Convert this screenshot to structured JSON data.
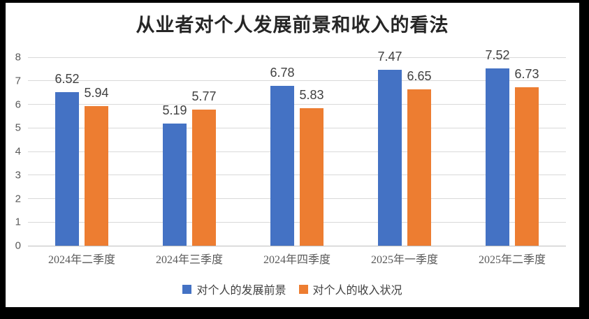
{
  "chart_data": {
    "type": "bar",
    "title": "从业者对个人发展前景和收入的看法",
    "categories": [
      "2024年二季度",
      "2024年三季度",
      "2024年四季度",
      "2025年一季度",
      "2025年二季度"
    ],
    "series": [
      {
        "name": "对个人的发展前景",
        "color": "#4472C4",
        "values": [
          6.52,
          5.19,
          6.78,
          7.47,
          7.52
        ]
      },
      {
        "name": "对个人的收入状况",
        "color": "#ED7D31",
        "values": [
          5.94,
          5.77,
          5.83,
          6.65,
          6.73
        ]
      }
    ],
    "xlabel": "",
    "ylabel": "",
    "ylim": [
      0,
      8
    ],
    "y_ticks": [
      0,
      1,
      2,
      3,
      4,
      5,
      6,
      7,
      8
    ],
    "grid": "horizontal",
    "gridline_color": "#d9d9d9",
    "value_labels": "outside-end",
    "legend_position": "bottom",
    "frame_color": "#000000",
    "background_color": "#ffffff"
  }
}
